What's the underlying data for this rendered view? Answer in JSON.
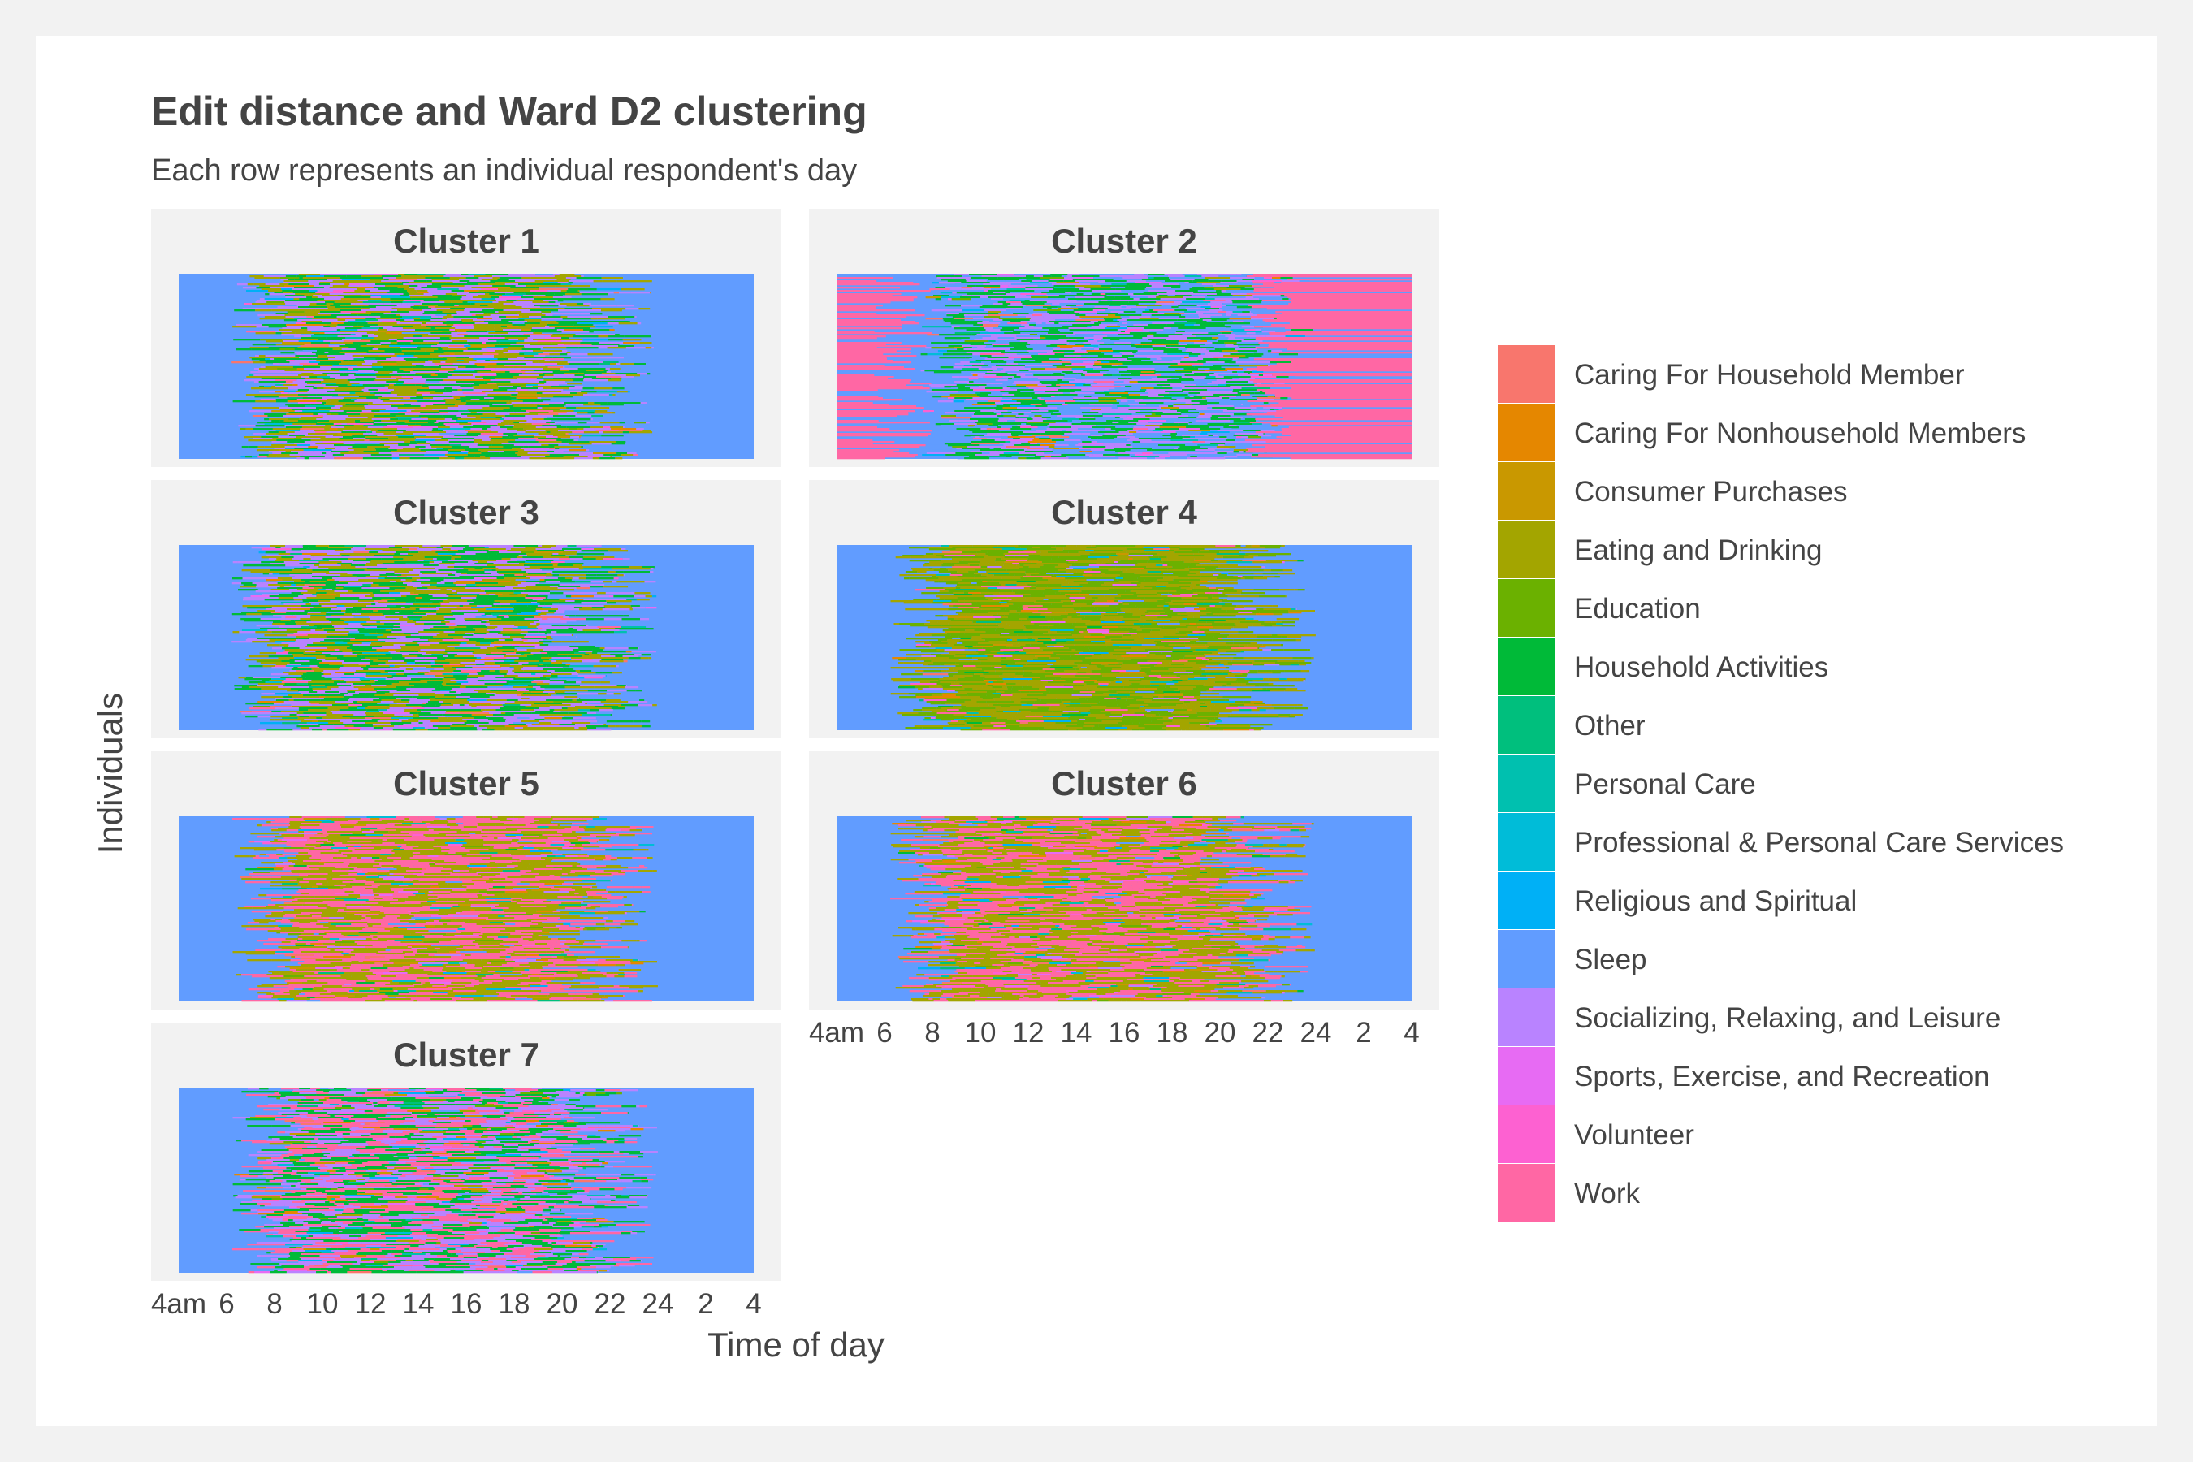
{
  "chart_data": {
    "type": "heatmap",
    "title": "Edit distance and Ward D2 clustering",
    "subtitle": "Each row represents an individual respondent's day",
    "xlabel": "Time of day",
    "ylabel": "Individuals",
    "x_ticks": [
      {
        "label": "4am",
        "hour": 4
      },
      {
        "label": "6",
        "hour": 6
      },
      {
        "label": "8",
        "hour": 8
      },
      {
        "label": "10",
        "hour": 10
      },
      {
        "label": "12",
        "hour": 12
      },
      {
        "label": "14",
        "hour": 14
      },
      {
        "label": "16",
        "hour": 16
      },
      {
        "label": "18",
        "hour": 18
      },
      {
        "label": "20",
        "hour": 20
      },
      {
        "label": "22",
        "hour": 22
      },
      {
        "label": "24",
        "hour": 24
      },
      {
        "label": "2",
        "hour": 26
      },
      {
        "label": "4",
        "hour": 28
      }
    ],
    "xlim_hours": [
      4,
      28
    ],
    "legend_position": "right",
    "categories": [
      {
        "name": "Caring For Household Member",
        "color": "#F8766D"
      },
      {
        "name": "Caring For Nonhousehold Members",
        "color": "#E58700"
      },
      {
        "name": "Consumer Purchases",
        "color": "#C99800"
      },
      {
        "name": "Eating and Drinking",
        "color": "#A3A500"
      },
      {
        "name": "Education",
        "color": "#6BB100"
      },
      {
        "name": "Household Activities",
        "color": "#00BA38"
      },
      {
        "name": "Other",
        "color": "#00BF7D"
      },
      {
        "name": "Personal Care",
        "color": "#00C0AF"
      },
      {
        "name": "Professional & Personal Care Services",
        "color": "#00BCD8"
      },
      {
        "name": "Religious and Spiritual",
        "color": "#00B0F6"
      },
      {
        "name": "Sleep",
        "color": "#619CFF"
      },
      {
        "name": "Socializing, Relaxing, and Leisure",
        "color": "#B983FF"
      },
      {
        "name": "Sports, Exercise, and Recreation",
        "color": "#E76BF3"
      },
      {
        "name": "Volunteer",
        "color": "#FD61D1"
      },
      {
        "name": "Work",
        "color": "#FF67A4"
      }
    ],
    "panels": [
      {
        "title": "Cluster 1",
        "dominant_day_activities": [
          "Socializing, Relaxing, and Leisure",
          "Household Activities",
          "Eating and Drinking"
        ]
      },
      {
        "title": "Cluster 2",
        "dominant_day_activities": [
          "Sleep",
          "Household Activities",
          "Socializing, Relaxing, and Leisure"
        ]
      },
      {
        "title": "Cluster 3",
        "dominant_day_activities": [
          "Household Activities",
          "Socializing, Relaxing, and Leisure",
          "Eating and Drinking"
        ]
      },
      {
        "title": "Cluster 4",
        "dominant_day_activities": [
          "Education",
          "Eating and Drinking"
        ]
      },
      {
        "title": "Cluster 5",
        "dominant_day_activities": [
          "Work",
          "Eating and Drinking"
        ]
      },
      {
        "title": "Cluster 6",
        "dominant_day_activities": [
          "Work",
          "Eating and Drinking"
        ]
      },
      {
        "title": "Cluster 7",
        "dominant_day_activities": [
          "Work",
          "Socializing, Relaxing, and Leisure",
          "Household Activities"
        ]
      }
    ]
  }
}
